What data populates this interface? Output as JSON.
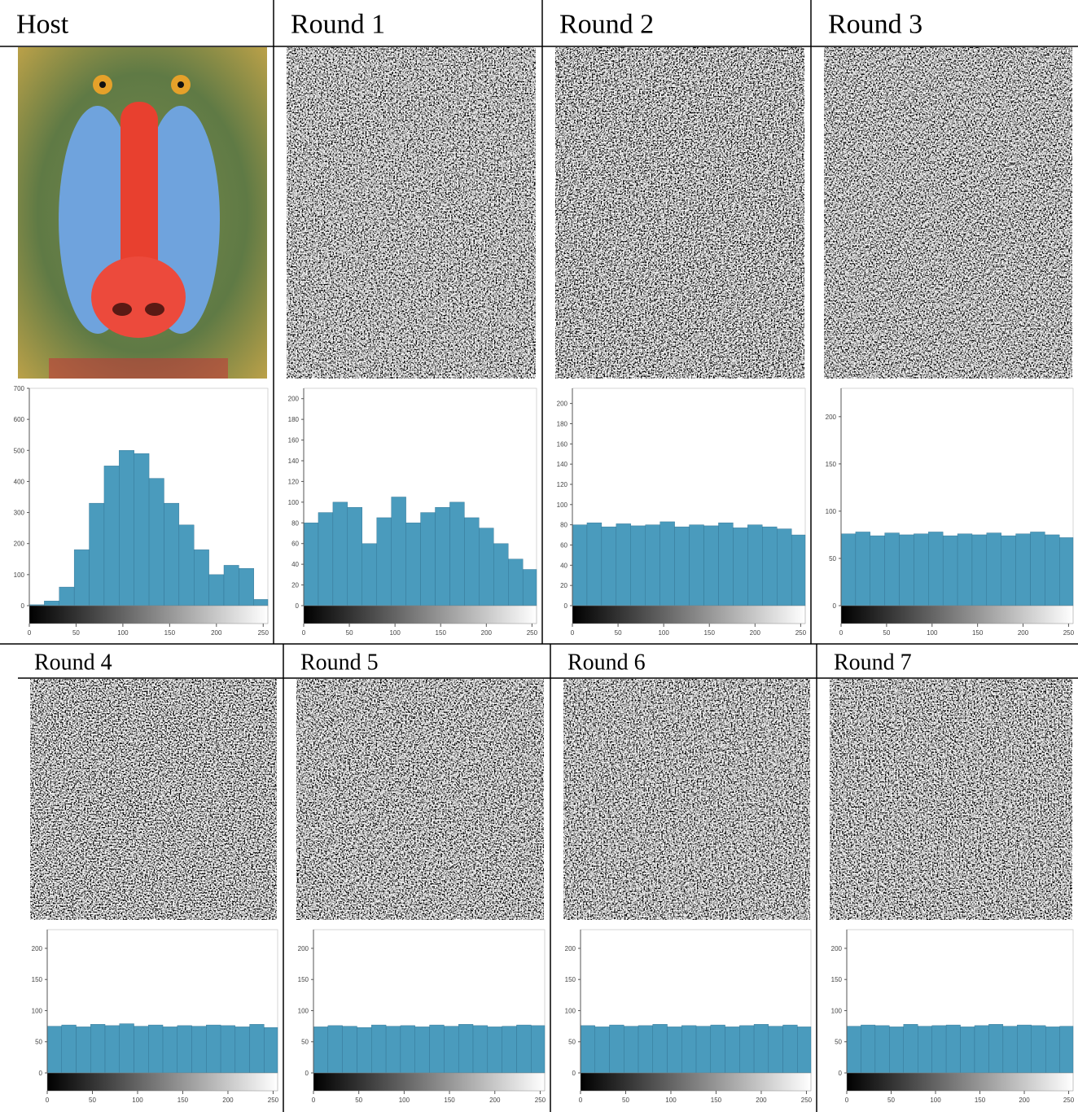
{
  "chart_data": [
    {
      "type": "histogram",
      "title": "Host",
      "color": "#4a9bbd",
      "bins": [
        0,
        16,
        32,
        48,
        64,
        80,
        96,
        112,
        128,
        144,
        160,
        176,
        192,
        208,
        224,
        240,
        256
      ],
      "values": [
        3,
        15,
        60,
        180,
        330,
        450,
        500,
        490,
        410,
        330,
        260,
        180,
        100,
        130,
        120,
        20
      ],
      "xlim": [
        0,
        255
      ],
      "xticks": [
        0,
        50,
        100,
        150,
        200,
        250
      ],
      "ylim": [
        0,
        700
      ],
      "yticks": [
        0,
        100,
        200,
        300,
        400,
        500,
        600,
        700
      ]
    },
    {
      "type": "histogram",
      "title": "Round 1",
      "color": "#4a9bbd",
      "bins": [
        0,
        16,
        32,
        48,
        64,
        80,
        96,
        112,
        128,
        144,
        160,
        176,
        192,
        208,
        224,
        240,
        256
      ],
      "values": [
        80,
        90,
        100,
        95,
        60,
        85,
        105,
        80,
        90,
        95,
        100,
        85,
        75,
        60,
        45,
        35
      ],
      "xlim": [
        0,
        255
      ],
      "xticks": [
        0,
        50,
        100,
        150,
        200,
        250
      ],
      "ylim": [
        0,
        210
      ],
      "yticks": [
        0,
        20,
        40,
        60,
        80,
        100,
        120,
        140,
        160,
        180,
        200
      ]
    },
    {
      "type": "histogram",
      "title": "Round 2",
      "color": "#4a9bbd",
      "bins": [
        0,
        16,
        32,
        48,
        64,
        80,
        96,
        112,
        128,
        144,
        160,
        176,
        192,
        208,
        224,
        240,
        256
      ],
      "values": [
        80,
        82,
        78,
        81,
        79,
        80,
        83,
        78,
        80,
        79,
        82,
        77,
        80,
        78,
        76,
        70
      ],
      "xlim": [
        0,
        255
      ],
      "xticks": [
        0,
        50,
        100,
        150,
        200,
        250
      ],
      "ylim": [
        0,
        215
      ],
      "yticks": [
        0,
        20,
        40,
        60,
        80,
        100,
        120,
        140,
        160,
        180,
        200
      ]
    },
    {
      "type": "histogram",
      "title": "Round 3",
      "color": "#4a9bbd",
      "bins": [
        0,
        16,
        32,
        48,
        64,
        80,
        96,
        112,
        128,
        144,
        160,
        176,
        192,
        208,
        224,
        240,
        256
      ],
      "values": [
        76,
        78,
        74,
        77,
        75,
        76,
        78,
        74,
        76,
        75,
        77,
        74,
        76,
        78,
        75,
        72
      ],
      "xlim": [
        0,
        255
      ],
      "xticks": [
        0,
        50,
        100,
        150,
        200,
        250
      ],
      "ylim": [
        0,
        230
      ],
      "yticks": [
        0,
        50,
        100,
        150,
        200
      ]
    },
    {
      "type": "histogram",
      "title": "Round 4",
      "color": "#4a9bbd",
      "bins": [
        0,
        16,
        32,
        48,
        64,
        80,
        96,
        112,
        128,
        144,
        160,
        176,
        192,
        208,
        224,
        240,
        256
      ],
      "values": [
        75,
        77,
        74,
        78,
        76,
        79,
        75,
        77,
        74,
        76,
        75,
        77,
        76,
        74,
        78,
        73
      ],
      "xlim": [
        0,
        255
      ],
      "xticks": [
        0,
        50,
        100,
        150,
        200,
        250
      ],
      "ylim": [
        0,
        230
      ],
      "yticks": [
        0,
        50,
        100,
        150,
        200
      ]
    },
    {
      "type": "histogram",
      "title": "Round 5",
      "color": "#4a9bbd",
      "bins": [
        0,
        16,
        32,
        48,
        64,
        80,
        96,
        112,
        128,
        144,
        160,
        176,
        192,
        208,
        224,
        240,
        256
      ],
      "values": [
        74,
        76,
        75,
        73,
        77,
        75,
        76,
        74,
        77,
        75,
        78,
        76,
        74,
        75,
        77,
        76
      ],
      "xlim": [
        0,
        255
      ],
      "xticks": [
        0,
        50,
        100,
        150,
        200,
        250
      ],
      "ylim": [
        0,
        230
      ],
      "yticks": [
        0,
        50,
        100,
        150,
        200
      ]
    },
    {
      "type": "histogram",
      "title": "Round 6",
      "color": "#4a9bbd",
      "bins": [
        0,
        16,
        32,
        48,
        64,
        80,
        96,
        112,
        128,
        144,
        160,
        176,
        192,
        208,
        224,
        240,
        256
      ],
      "values": [
        76,
        74,
        77,
        75,
        76,
        78,
        74,
        76,
        75,
        77,
        74,
        76,
        78,
        75,
        77,
        74
      ],
      "xlim": [
        0,
        255
      ],
      "xticks": [
        0,
        50,
        100,
        150,
        200,
        250
      ],
      "ylim": [
        0,
        230
      ],
      "yticks": [
        0,
        50,
        100,
        150,
        200
      ]
    },
    {
      "type": "histogram",
      "title": "Round 7",
      "color": "#4a9bbd",
      "bins": [
        0,
        16,
        32,
        48,
        64,
        80,
        96,
        112,
        128,
        144,
        160,
        176,
        192,
        208,
        224,
        240,
        256
      ],
      "values": [
        75,
        77,
        76,
        74,
        78,
        75,
        76,
        77,
        74,
        76,
        78,
        75,
        77,
        76,
        74,
        75
      ],
      "xlim": [
        0,
        255
      ],
      "xticks": [
        0,
        50,
        100,
        150,
        200,
        250
      ],
      "ylim": [
        0,
        230
      ],
      "yticks": [
        0,
        50,
        100,
        150,
        200
      ]
    }
  ]
}
